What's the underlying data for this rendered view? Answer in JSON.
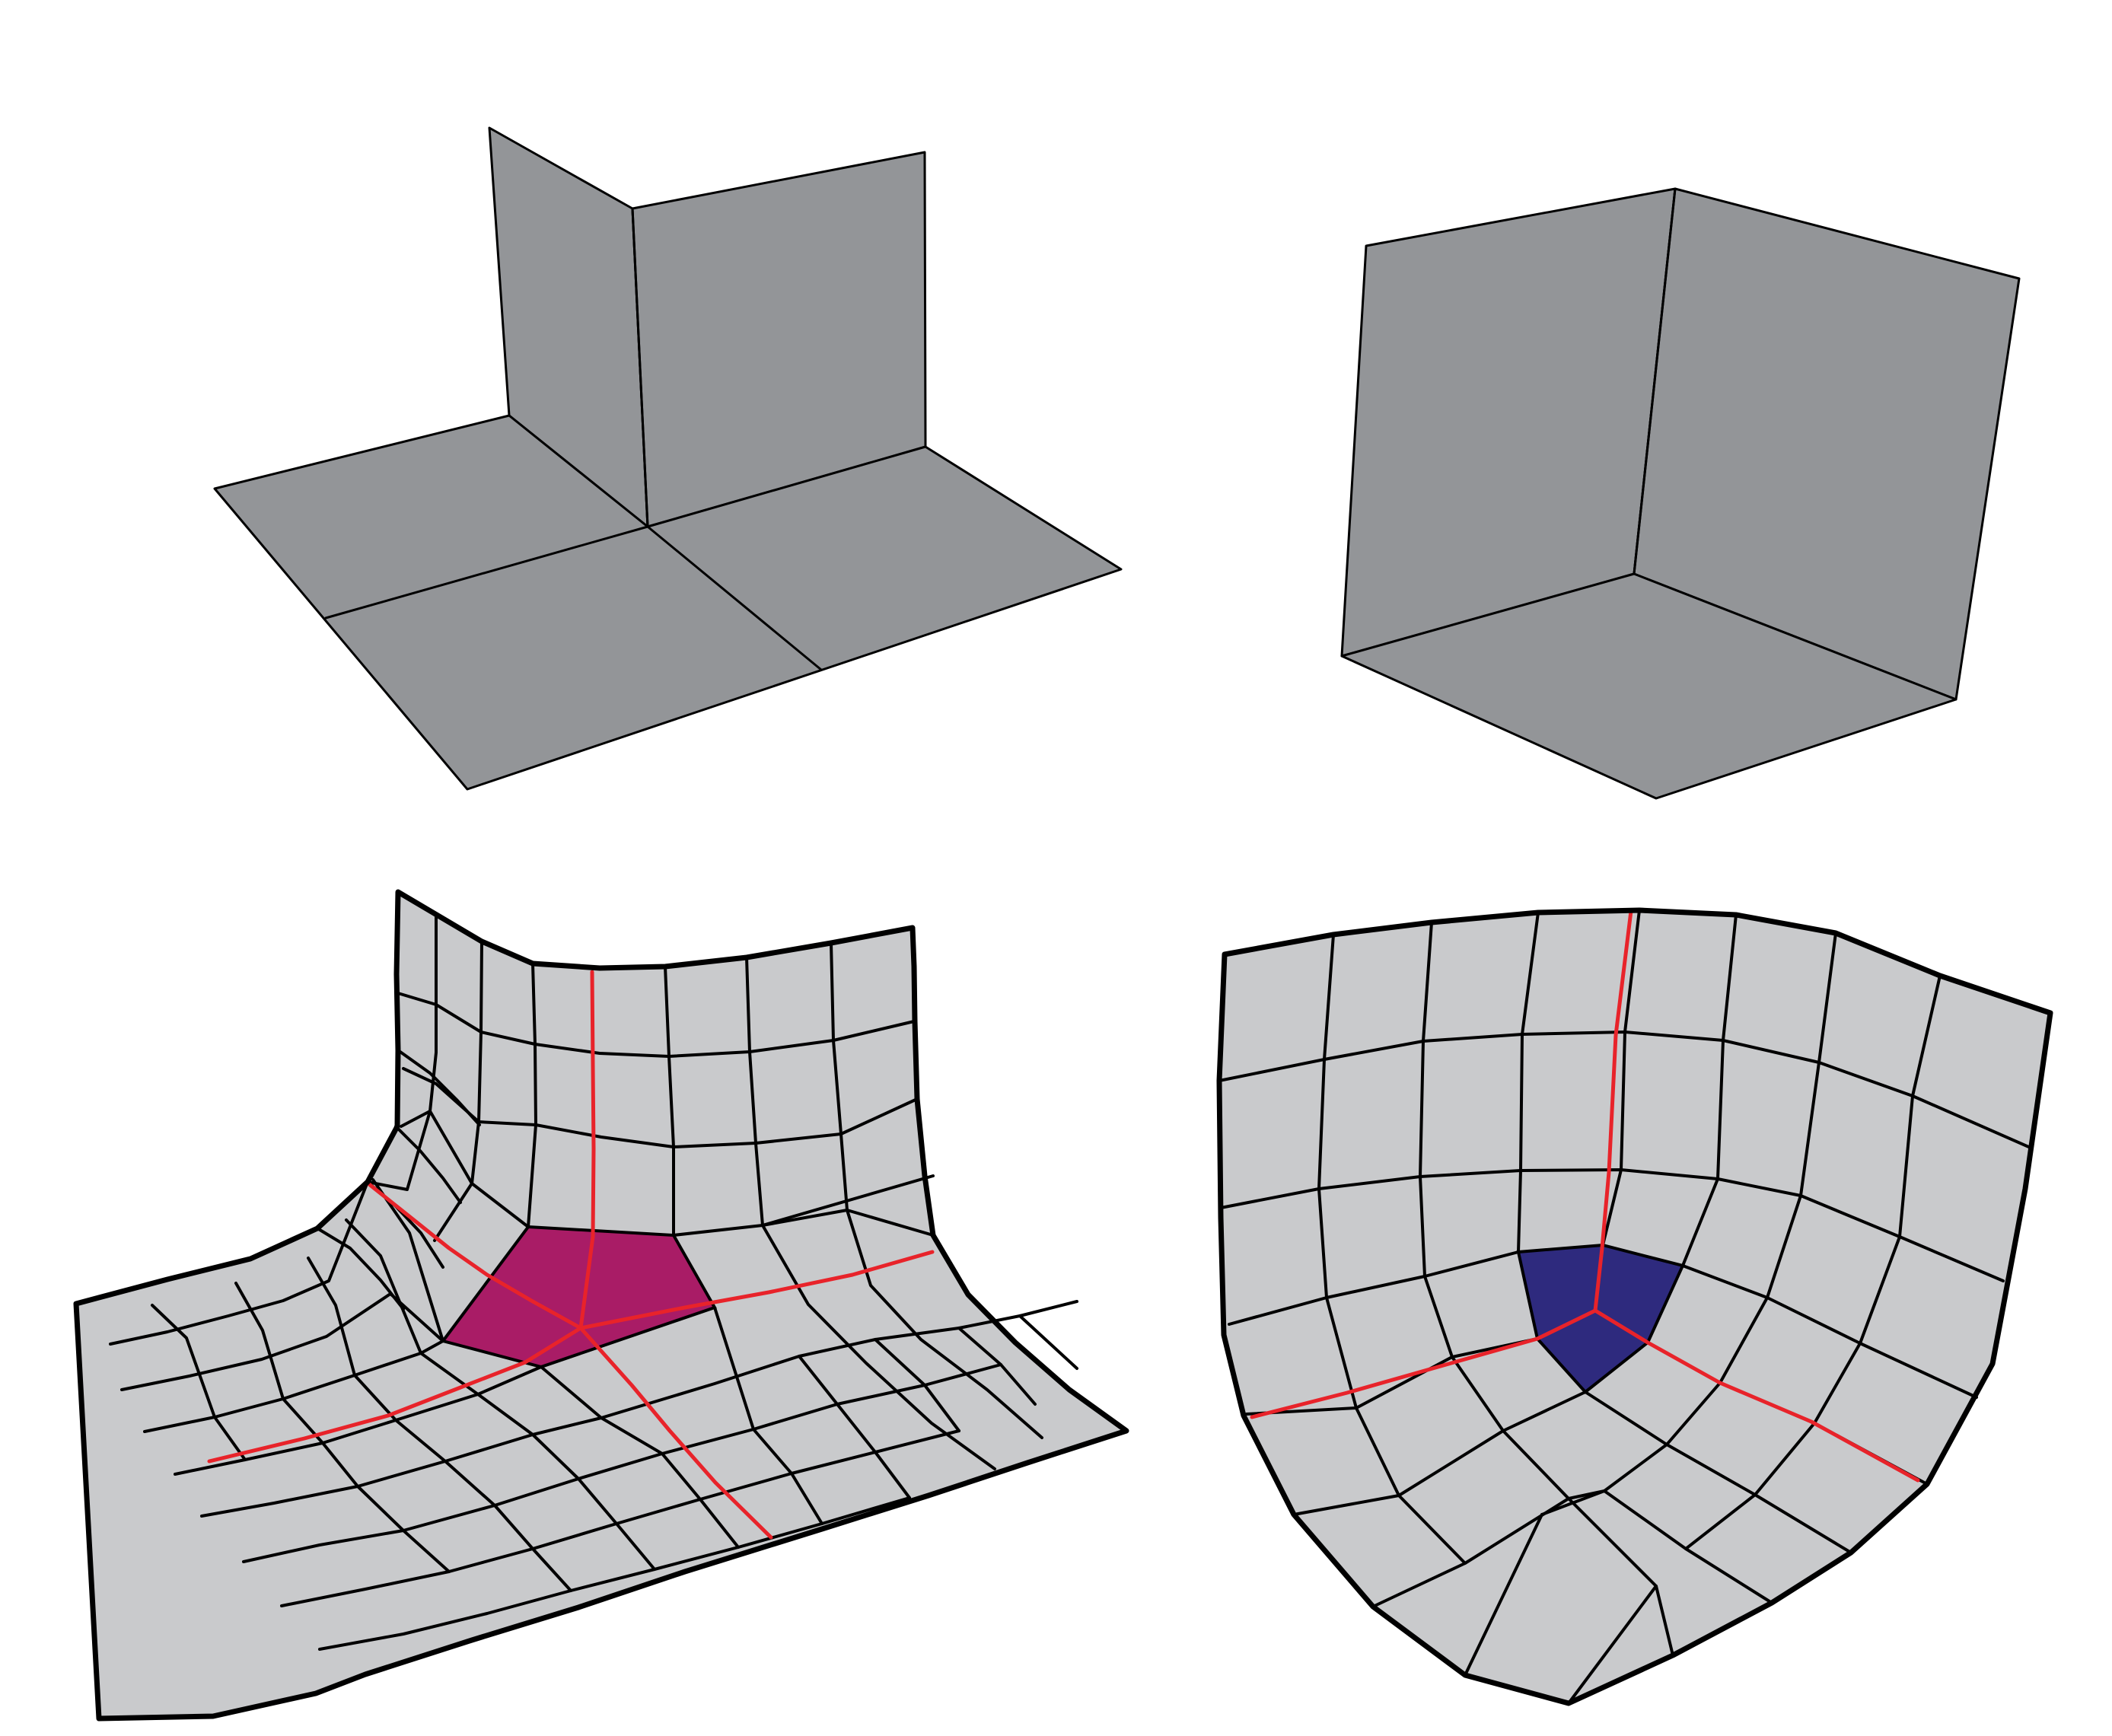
{
  "colors": {
    "background": "#ffffff",
    "plane_fill": "#939598",
    "mesh_fill": "#c9cacc",
    "outline": "#000000",
    "highlight_line": "#e8232a",
    "pentagon_fill": "#a91c66",
    "triangle_fill": "#2e2a7e"
  },
  "panels": [
    {
      "name": "planar-corner-block",
      "kind": "planes"
    },
    {
      "name": "cube-corner-block",
      "kind": "planes"
    },
    {
      "name": "valence-five-mesh",
      "kind": "quad-mesh",
      "highlight": "pentagon"
    },
    {
      "name": "valence-three-mesh",
      "kind": "quad-mesh",
      "highlight": "triangle"
    }
  ]
}
